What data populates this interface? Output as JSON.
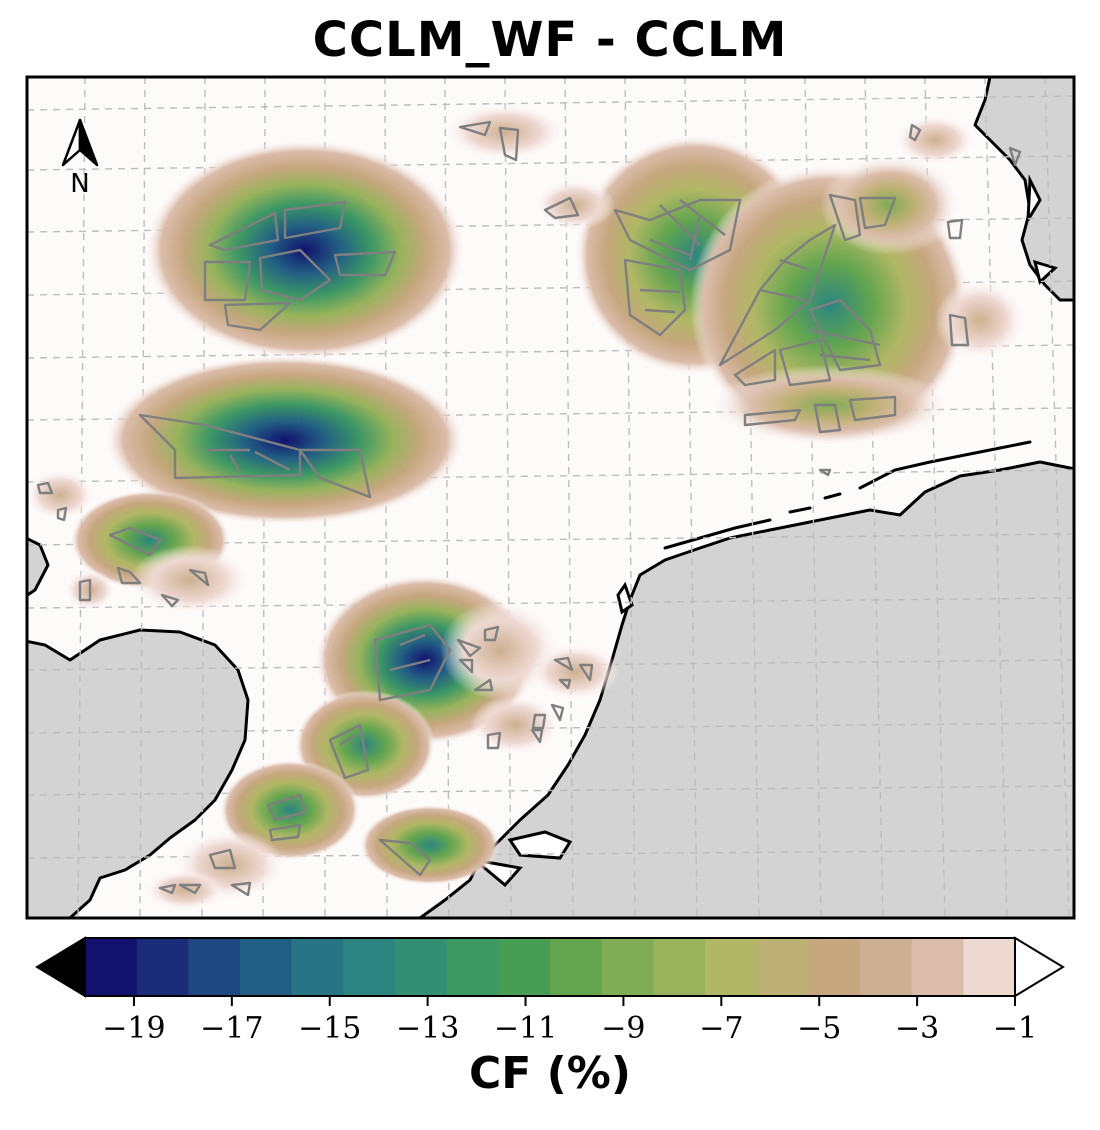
{
  "title": "CCLM_WF - CCLM",
  "north_arrow": {
    "letter": "N",
    "icon": "north-arrow-icon"
  },
  "colorbar": {
    "label": "CF (%)",
    "ticks": [
      "−19",
      "−17",
      "−15",
      "−13",
      "−11",
      "−9",
      "−7",
      "−5",
      "−3",
      "−1"
    ],
    "min": -20,
    "max": -1,
    "step": 1,
    "extend": "both",
    "under_color": "#000000",
    "over_color": "#ffffff",
    "colors": [
      "#12126e",
      "#1b2d7a",
      "#1f4780",
      "#225f84",
      "#267484",
      "#2c8580",
      "#338f74",
      "#3d9864",
      "#489d55",
      "#63a54f",
      "#7fac55",
      "#98b35c",
      "#b1b765",
      "#bdb074",
      "#c6a77f",
      "#cdb091",
      "#dbbcaa",
      "#eed8d2"
    ]
  },
  "map": {
    "background": "#fdfafa",
    "land_color": "#d3d3d3",
    "gridlines": "dashed",
    "chart_type": "filled contour map of capacity factor change around offshore wind farm clusters"
  }
}
